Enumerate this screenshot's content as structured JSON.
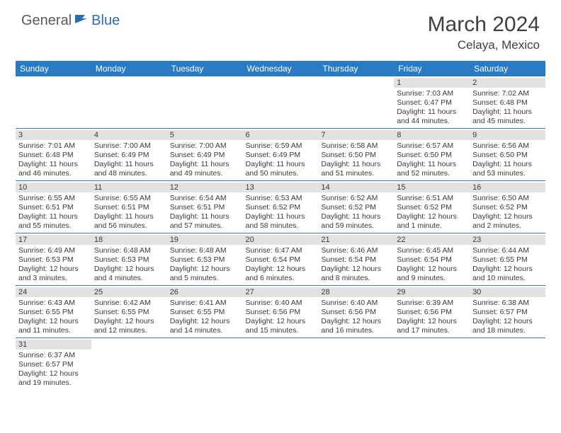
{
  "logo": {
    "text1": "General",
    "text2": "Blue"
  },
  "title": "March 2024",
  "location": "Celaya, Mexico",
  "colors": {
    "header_bg": "#2a7bc4",
    "header_text": "#ffffff",
    "daynum_bg": "#e2e2e2",
    "text": "#3a3a3a",
    "row_divider": "#2a7bc4",
    "logo_accent": "#2a6db3",
    "logo_gray": "#5a5a5a"
  },
  "day_headers": [
    "Sunday",
    "Monday",
    "Tuesday",
    "Wednesday",
    "Thursday",
    "Friday",
    "Saturday"
  ],
  "weeks": [
    [
      null,
      null,
      null,
      null,
      null,
      {
        "n": "1",
        "sr": "Sunrise: 7:03 AM",
        "ss": "Sunset: 6:47 PM",
        "dl": "Daylight: 11 hours and 44 minutes."
      },
      {
        "n": "2",
        "sr": "Sunrise: 7:02 AM",
        "ss": "Sunset: 6:48 PM",
        "dl": "Daylight: 11 hours and 45 minutes."
      }
    ],
    [
      {
        "n": "3",
        "sr": "Sunrise: 7:01 AM",
        "ss": "Sunset: 6:48 PM",
        "dl": "Daylight: 11 hours and 46 minutes."
      },
      {
        "n": "4",
        "sr": "Sunrise: 7:00 AM",
        "ss": "Sunset: 6:49 PM",
        "dl": "Daylight: 11 hours and 48 minutes."
      },
      {
        "n": "5",
        "sr": "Sunrise: 7:00 AM",
        "ss": "Sunset: 6:49 PM",
        "dl": "Daylight: 11 hours and 49 minutes."
      },
      {
        "n": "6",
        "sr": "Sunrise: 6:59 AM",
        "ss": "Sunset: 6:49 PM",
        "dl": "Daylight: 11 hours and 50 minutes."
      },
      {
        "n": "7",
        "sr": "Sunrise: 6:58 AM",
        "ss": "Sunset: 6:50 PM",
        "dl": "Daylight: 11 hours and 51 minutes."
      },
      {
        "n": "8",
        "sr": "Sunrise: 6:57 AM",
        "ss": "Sunset: 6:50 PM",
        "dl": "Daylight: 11 hours and 52 minutes."
      },
      {
        "n": "9",
        "sr": "Sunrise: 6:56 AM",
        "ss": "Sunset: 6:50 PM",
        "dl": "Daylight: 11 hours and 53 minutes."
      }
    ],
    [
      {
        "n": "10",
        "sr": "Sunrise: 6:55 AM",
        "ss": "Sunset: 6:51 PM",
        "dl": "Daylight: 11 hours and 55 minutes."
      },
      {
        "n": "11",
        "sr": "Sunrise: 6:55 AM",
        "ss": "Sunset: 6:51 PM",
        "dl": "Daylight: 11 hours and 56 minutes."
      },
      {
        "n": "12",
        "sr": "Sunrise: 6:54 AM",
        "ss": "Sunset: 6:51 PM",
        "dl": "Daylight: 11 hours and 57 minutes."
      },
      {
        "n": "13",
        "sr": "Sunrise: 6:53 AM",
        "ss": "Sunset: 6:52 PM",
        "dl": "Daylight: 11 hours and 58 minutes."
      },
      {
        "n": "14",
        "sr": "Sunrise: 6:52 AM",
        "ss": "Sunset: 6:52 PM",
        "dl": "Daylight: 11 hours and 59 minutes."
      },
      {
        "n": "15",
        "sr": "Sunrise: 6:51 AM",
        "ss": "Sunset: 6:52 PM",
        "dl": "Daylight: 12 hours and 1 minute."
      },
      {
        "n": "16",
        "sr": "Sunrise: 6:50 AM",
        "ss": "Sunset: 6:52 PM",
        "dl": "Daylight: 12 hours and 2 minutes."
      }
    ],
    [
      {
        "n": "17",
        "sr": "Sunrise: 6:49 AM",
        "ss": "Sunset: 6:53 PM",
        "dl": "Daylight: 12 hours and 3 minutes."
      },
      {
        "n": "18",
        "sr": "Sunrise: 6:48 AM",
        "ss": "Sunset: 6:53 PM",
        "dl": "Daylight: 12 hours and 4 minutes."
      },
      {
        "n": "19",
        "sr": "Sunrise: 6:48 AM",
        "ss": "Sunset: 6:53 PM",
        "dl": "Daylight: 12 hours and 5 minutes."
      },
      {
        "n": "20",
        "sr": "Sunrise: 6:47 AM",
        "ss": "Sunset: 6:54 PM",
        "dl": "Daylight: 12 hours and 6 minutes."
      },
      {
        "n": "21",
        "sr": "Sunrise: 6:46 AM",
        "ss": "Sunset: 6:54 PM",
        "dl": "Daylight: 12 hours and 8 minutes."
      },
      {
        "n": "22",
        "sr": "Sunrise: 6:45 AM",
        "ss": "Sunset: 6:54 PM",
        "dl": "Daylight: 12 hours and 9 minutes."
      },
      {
        "n": "23",
        "sr": "Sunrise: 6:44 AM",
        "ss": "Sunset: 6:55 PM",
        "dl": "Daylight: 12 hours and 10 minutes."
      }
    ],
    [
      {
        "n": "24",
        "sr": "Sunrise: 6:43 AM",
        "ss": "Sunset: 6:55 PM",
        "dl": "Daylight: 12 hours and 11 minutes."
      },
      {
        "n": "25",
        "sr": "Sunrise: 6:42 AM",
        "ss": "Sunset: 6:55 PM",
        "dl": "Daylight: 12 hours and 12 minutes."
      },
      {
        "n": "26",
        "sr": "Sunrise: 6:41 AM",
        "ss": "Sunset: 6:55 PM",
        "dl": "Daylight: 12 hours and 14 minutes."
      },
      {
        "n": "27",
        "sr": "Sunrise: 6:40 AM",
        "ss": "Sunset: 6:56 PM",
        "dl": "Daylight: 12 hours and 15 minutes."
      },
      {
        "n": "28",
        "sr": "Sunrise: 6:40 AM",
        "ss": "Sunset: 6:56 PM",
        "dl": "Daylight: 12 hours and 16 minutes."
      },
      {
        "n": "29",
        "sr": "Sunrise: 6:39 AM",
        "ss": "Sunset: 6:56 PM",
        "dl": "Daylight: 12 hours and 17 minutes."
      },
      {
        "n": "30",
        "sr": "Sunrise: 6:38 AM",
        "ss": "Sunset: 6:57 PM",
        "dl": "Daylight: 12 hours and 18 minutes."
      }
    ],
    [
      {
        "n": "31",
        "sr": "Sunrise: 6:37 AM",
        "ss": "Sunset: 6:57 PM",
        "dl": "Daylight: 12 hours and 19 minutes."
      },
      null,
      null,
      null,
      null,
      null,
      null
    ]
  ]
}
